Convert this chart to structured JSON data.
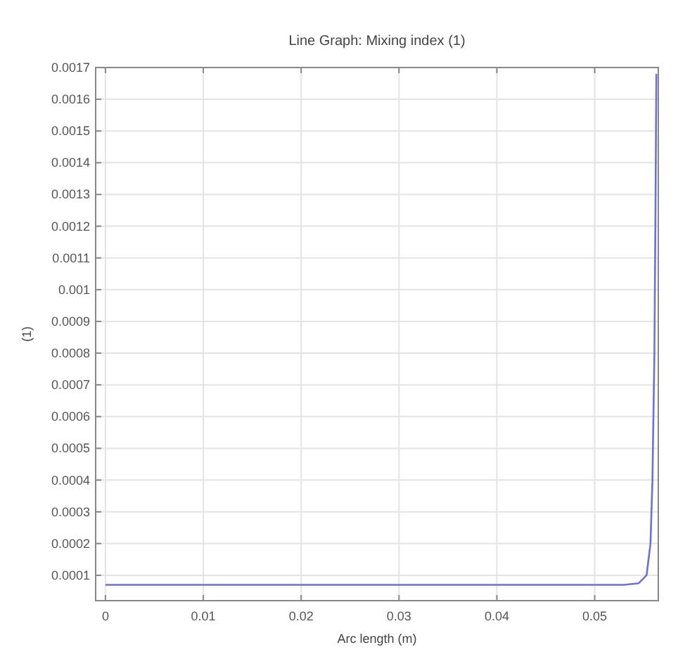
{
  "chart_data": {
    "type": "line",
    "title": "Line Graph: Mixing index (1)",
    "xlabel": "Arc length (m)",
    "ylabel": "(1)",
    "x": [
      0,
      0.01,
      0.02,
      0.03,
      0.04,
      0.05,
      0.053,
      0.0545,
      0.0553,
      0.0557,
      0.0559,
      0.0561,
      0.0562,
      0.0563
    ],
    "series": [
      {
        "color": "#6f6fd8",
        "values": [
          7e-05,
          7e-05,
          7e-05,
          7e-05,
          7e-05,
          7e-05,
          7e-05,
          7.5e-05,
          0.0001,
          0.0002,
          0.0004,
          0.0008,
          0.0012,
          0.00168
        ]
      }
    ],
    "xlim": [
      -0.001,
      0.0565
    ],
    "xticks": [
      0,
      0.01,
      0.02,
      0.03,
      0.04,
      0.05
    ],
    "ylim": [
      2e-05,
      0.0017
    ],
    "yticks": [
      0.0001,
      0.0002,
      0.0003,
      0.0004,
      0.0005,
      0.0006,
      0.0007,
      0.0008,
      0.0009,
      0.001,
      0.0011,
      0.0012,
      0.0013,
      0.0014,
      0.0015,
      0.0016,
      0.0017
    ],
    "grid": true,
    "marker": "none",
    "line_style": "solid"
  }
}
